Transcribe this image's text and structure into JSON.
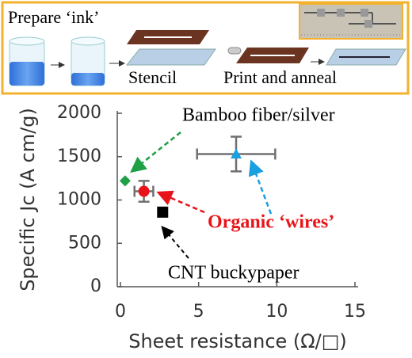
{
  "schematic": {
    "title": "Prepare ‘ink’",
    "steps": [
      "Stencil",
      "Print and anneal"
    ]
  },
  "chart_data": {
    "type": "scatter",
    "x_label": "Sheet resistance (Ω/□)",
    "y_label": "Specific Jc (A cm/g)",
    "xlim": [
      0,
      15
    ],
    "ylim": [
      0,
      2000
    ],
    "xticks": [
      0,
      5,
      10,
      15
    ],
    "yticks": [
      0,
      500,
      1000,
      1500,
      2000
    ],
    "grid": false,
    "error_color": "#707070",
    "series": [
      {
        "color": "#1fa045",
        "marker": "diamond",
        "x": [
          0.3
        ],
        "values": [
          1220
        ]
      },
      {
        "color": "#e8141a",
        "marker": "circle",
        "x": [
          1.5
        ],
        "values": [
          1100
        ],
        "xerr": [
          0.6
        ],
        "yerr": [
          120
        ]
      },
      {
        "color": "#000000",
        "marker": "square",
        "x": [
          2.7
        ],
        "values": [
          860
        ]
      },
      {
        "color": "#1a9fe0",
        "marker": "triangle",
        "x": [
          7.4
        ],
        "values": [
          1530
        ],
        "xerr": [
          2.5
        ],
        "yerr": [
          200
        ]
      }
    ],
    "annotations": [
      {
        "text": "Bamboo fiber/silver",
        "color": "#000000"
      },
      {
        "text": "Organic ‘wires’",
        "color": "#e8141a"
      },
      {
        "text": "CNT buckypaper",
        "color": "#000000"
      }
    ]
  }
}
